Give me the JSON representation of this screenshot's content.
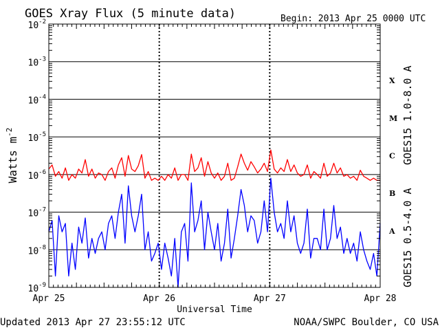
{
  "chart_data": {
    "type": "line",
    "title": "GOES Xray Flux (5 minute data)",
    "begin_label": "Begin:  2013 Apr 25 0000 UTC",
    "xlabel": "Universal Time",
    "ylabel": {
      "base": "Watts m",
      "exponent": "-2"
    },
    "x_ticks": [
      "Apr 25",
      "Apr 26",
      "Apr 27",
      "Apr 28"
    ],
    "xlim_days": [
      0,
      3
    ],
    "y_scale": "log",
    "ylim": [
      1e-09,
      0.01
    ],
    "y_ticks": [
      {
        "exp": -2,
        "base": "10",
        "sup": "-2"
      },
      {
        "exp": -3,
        "base": "10",
        "sup": "-3"
      },
      {
        "exp": -4,
        "base": "10",
        "sup": "-4"
      },
      {
        "exp": -5,
        "base": "10",
        "sup": "-5"
      },
      {
        "exp": -6,
        "base": "10",
        "sup": "-6"
      },
      {
        "exp": -7,
        "base": "10",
        "sup": "-7"
      },
      {
        "exp": -8,
        "base": "10",
        "sup": "-8"
      },
      {
        "exp": -9,
        "base": "10",
        "sup": "-9"
      }
    ],
    "flare_classes": [
      {
        "label": "X",
        "exp": -3.5
      },
      {
        "label": "M",
        "exp": -4.5
      },
      {
        "label": "C",
        "exp": -5.5
      },
      {
        "label": "B",
        "exp": -6.5
      },
      {
        "label": "A",
        "exp": -7.5
      }
    ],
    "grid": "horizontal at decades; dotted vertical at day boundaries",
    "series": [
      {
        "name": "GOES15 1.0-8.0 A",
        "color": "#ff0000",
        "x": [
          0.0,
          0.03,
          0.06,
          0.09,
          0.12,
          0.15,
          0.18,
          0.21,
          0.24,
          0.27,
          0.3,
          0.33,
          0.36,
          0.39,
          0.42,
          0.45,
          0.48,
          0.51,
          0.54,
          0.57,
          0.6,
          0.63,
          0.66,
          0.69,
          0.72,
          0.75,
          0.78,
          0.81,
          0.84,
          0.87,
          0.9,
          0.93,
          0.96,
          0.99,
          1.02,
          1.05,
          1.08,
          1.11,
          1.14,
          1.17,
          1.2,
          1.23,
          1.26,
          1.29,
          1.32,
          1.35,
          1.38,
          1.41,
          1.44,
          1.47,
          1.5,
          1.53,
          1.56,
          1.59,
          1.62,
          1.65,
          1.68,
          1.71,
          1.74,
          1.77,
          1.8,
          1.83,
          1.86,
          1.89,
          1.92,
          1.95,
          1.98,
          2.01,
          2.04,
          2.07,
          2.1,
          2.13,
          2.16,
          2.19,
          2.22,
          2.25,
          2.28,
          2.31,
          2.34,
          2.37,
          2.4,
          2.43,
          2.46,
          2.49,
          2.52,
          2.55,
          2.58,
          2.61,
          2.64,
          2.67,
          2.7,
          2.73,
          2.76,
          2.79,
          2.82,
          2.85,
          2.88,
          2.91,
          2.94,
          2.97,
          3.0
        ],
        "y": [
          1.4e-06,
          1.8e-06,
          9e-07,
          1.2e-06,
          8e-07,
          1.5e-06,
          7e-07,
          1e-06,
          8e-07,
          1.4e-06,
          1.1e-06,
          2.5e-06,
          9e-07,
          1.4e-06,
          8e-07,
          1.1e-06,
          1e-06,
          7e-07,
          1.2e-06,
          1.5e-06,
          8e-07,
          1.8e-06,
          2.8e-06,
          9e-07,
          3.2e-06,
          1.4e-06,
          1.2e-06,
          1.7e-06,
          3.4e-06,
          8e-07,
          1.2e-06,
          7e-07,
          8e-07,
          7e-07,
          9e-07,
          7e-07,
          1e-06,
          8e-07,
          1.5e-06,
          7e-07,
          1e-06,
          1e-06,
          7e-07,
          3.5e-06,
          1.2e-06,
          1.5e-06,
          2.8e-06,
          9e-07,
          2.2e-06,
          1.1e-06,
          8e-07,
          1.1e-06,
          7e-07,
          9e-07,
          2e-06,
          7e-07,
          8e-07,
          1.6e-06,
          3.5e-06,
          2e-06,
          1.3e-06,
          2.2e-06,
          1.6e-06,
          1.1e-06,
          1.4e-06,
          2e-06,
          1.2e-06,
          4.5e-06,
          1.4e-06,
          1.1e-06,
          1.5e-06,
          1.2e-06,
          2.5e-06,
          1.2e-06,
          1.8e-06,
          1.1e-06,
          9e-07,
          1e-06,
          1.8e-06,
          8e-07,
          1.2e-06,
          1e-06,
          8e-07,
          2e-06,
          9e-07,
          1.1e-06,
          2e-06,
          1.1e-06,
          1.5e-06,
          9e-07,
          1e-06,
          8e-07,
          9e-07,
          7e-07,
          1.3e-06,
          9e-07,
          8e-07,
          7e-07,
          8e-07,
          7e-07,
          7e-07
        ]
      },
      {
        "name": "GOES15 0.5-4.0 A",
        "color": "#0000ff",
        "x": [
          0.0,
          0.03,
          0.06,
          0.09,
          0.12,
          0.15,
          0.18,
          0.21,
          0.24,
          0.27,
          0.3,
          0.33,
          0.36,
          0.39,
          0.42,
          0.45,
          0.48,
          0.51,
          0.54,
          0.57,
          0.6,
          0.63,
          0.66,
          0.69,
          0.72,
          0.75,
          0.78,
          0.81,
          0.84,
          0.87,
          0.9,
          0.93,
          0.96,
          0.99,
          1.02,
          1.05,
          1.08,
          1.11,
          1.14,
          1.17,
          1.2,
          1.23,
          1.26,
          1.29,
          1.32,
          1.35,
          1.38,
          1.41,
          1.44,
          1.47,
          1.5,
          1.53,
          1.56,
          1.59,
          1.62,
          1.65,
          1.68,
          1.71,
          1.74,
          1.77,
          1.8,
          1.83,
          1.86,
          1.89,
          1.92,
          1.95,
          1.98,
          2.01,
          2.04,
          2.07,
          2.1,
          2.13,
          2.16,
          2.19,
          2.22,
          2.25,
          2.28,
          2.31,
          2.34,
          2.37,
          2.4,
          2.43,
          2.46,
          2.49,
          2.52,
          2.55,
          2.58,
          2.61,
          2.64,
          2.67,
          2.7,
          2.73,
          2.76,
          2.79,
          2.82,
          2.85,
          2.88,
          2.91,
          2.94,
          2.97,
          3.0
        ],
        "y": [
          3e-08,
          6e-08,
          2e-09,
          8e-08,
          3e-08,
          5e-08,
          2e-09,
          1.5e-08,
          3e-09,
          4e-08,
          1.5e-08,
          7e-08,
          6e-09,
          2e-08,
          8e-09,
          2e-08,
          3e-08,
          1e-08,
          5e-08,
          8e-08,
          2e-08,
          1e-07,
          3e-07,
          1.5e-08,
          5e-07,
          8e-08,
          3e-08,
          8e-08,
          3e-07,
          1e-08,
          3e-08,
          5e-09,
          8e-09,
          1.5e-08,
          3e-09,
          1.5e-08,
          6e-09,
          2e-09,
          2e-08,
          1e-09,
          3e-08,
          5e-08,
          5e-09,
          6e-07,
          3e-08,
          6e-08,
          2e-07,
          1e-08,
          1e-07,
          3e-08,
          1e-08,
          5e-08,
          5e-09,
          1.5e-08,
          1.2e-07,
          6e-09,
          2e-08,
          8e-08,
          4e-07,
          1.5e-07,
          3e-08,
          8e-08,
          6e-08,
          1.5e-08,
          3e-08,
          2e-07,
          3e-08,
          8e-07,
          1e-07,
          3e-08,
          5e-08,
          2e-08,
          2e-07,
          3e-08,
          8e-08,
          1.5e-08,
          8e-09,
          1.5e-08,
          1.2e-07,
          6e-09,
          2e-08,
          2e-08,
          1e-08,
          1.2e-07,
          1e-08,
          2e-08,
          1.5e-07,
          2e-08,
          4e-08,
          8e-09,
          2e-08,
          8e-09,
          1.5e-08,
          5e-09,
          3e-08,
          1e-08,
          5e-09,
          3e-09,
          8e-09,
          2e-09,
          5e-08
        ]
      }
    ]
  },
  "footer": {
    "updated": "Updated 2013 Apr 27 23:55:12 UTC",
    "credit": "NOAA/SWPC Boulder, CO USA"
  }
}
